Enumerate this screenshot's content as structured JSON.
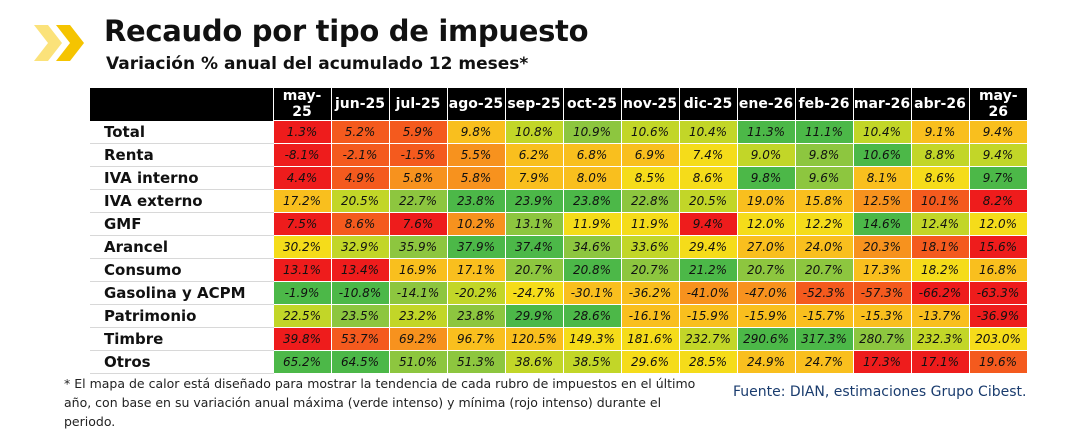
{
  "header": {
    "title": "Recaudo por tipo de impuesto",
    "subtitle": "Variación % anual del acumulado 12 meses*"
  },
  "colors": {
    "logo_chevron": "#f5c400",
    "logo_chevron_light": "#fbe27a",
    "header_bg": "#000000",
    "source_text": "#1a3c6e",
    "scale": {
      "red": "#ee1c1c",
      "orange_red": "#f45a1e",
      "orange": "#f7921e",
      "amber": "#f9bf1e",
      "yellow": "#f5dc1a",
      "yellow_green": "#c2d628",
      "light_green": "#8dc63f",
      "green": "#4cb848"
    }
  },
  "chart_data": {
    "type": "heatmap",
    "title": "Recaudo por tipo de impuesto",
    "subtitle": "Variación % anual del acumulado 12 meses*",
    "columns": [
      "may-25",
      "jun-25",
      "jul-25",
      "ago-25",
      "sep-25",
      "oct-25",
      "nov-25",
      "dic-25",
      "ene-26",
      "feb-26",
      "mar-26",
      "abr-26",
      "may-26"
    ],
    "rows": [
      {
        "label": "Total",
        "values": [
          "1.3%",
          "5.2%",
          "5.9%",
          "9.8%",
          "10.8%",
          "10.9%",
          "10.6%",
          "10.4%",
          "11.3%",
          "11.1%",
          "10.4%",
          "9.1%",
          "9.4%"
        ],
        "colors": [
          "red",
          "orange_red",
          "orange_red",
          "amber",
          "yellow_green",
          "light_green",
          "yellow_green",
          "yellow_green",
          "green",
          "green",
          "yellow_green",
          "amber",
          "amber"
        ]
      },
      {
        "label": "Renta",
        "values": [
          "-8.1%",
          "-2.1%",
          "-1.5%",
          "5.5%",
          "6.2%",
          "6.8%",
          "6.9%",
          "7.4%",
          "9.0%",
          "9.8%",
          "10.6%",
          "8.8%",
          "9.4%"
        ],
        "colors": [
          "red",
          "orange_red",
          "orange_red",
          "orange",
          "amber",
          "amber",
          "amber",
          "yellow",
          "yellow_green",
          "light_green",
          "green",
          "yellow_green",
          "yellow_green"
        ]
      },
      {
        "label": "IVA interno",
        "values": [
          "4.4%",
          "4.9%",
          "5.8%",
          "5.8%",
          "7.9%",
          "8.0%",
          "8.5%",
          "8.6%",
          "9.8%",
          "9.6%",
          "8.1%",
          "8.6%",
          "9.7%"
        ],
        "colors": [
          "red",
          "orange_red",
          "orange",
          "orange",
          "amber",
          "amber",
          "yellow",
          "yellow",
          "green",
          "light_green",
          "amber",
          "yellow",
          "green"
        ]
      },
      {
        "label": "IVA externo",
        "values": [
          "17.2%",
          "20.5%",
          "22.7%",
          "23.8%",
          "23.9%",
          "23.8%",
          "22.8%",
          "20.5%",
          "19.0%",
          "15.8%",
          "12.5%",
          "10.1%",
          "8.2%"
        ],
        "colors": [
          "amber",
          "yellow_green",
          "light_green",
          "green",
          "green",
          "green",
          "light_green",
          "yellow_green",
          "amber",
          "amber",
          "orange",
          "orange_red",
          "red"
        ]
      },
      {
        "label": "GMF",
        "values": [
          "7.5%",
          "8.6%",
          "7.6%",
          "10.2%",
          "13.1%",
          "11.9%",
          "11.9%",
          "9.4%",
          "12.0%",
          "12.2%",
          "14.6%",
          "12.4%",
          "12.0%"
        ],
        "colors": [
          "red",
          "orange_red",
          "red",
          "orange",
          "light_green",
          "yellow",
          "yellow",
          "red",
          "yellow",
          "yellow",
          "green",
          "yellow_green",
          "yellow"
        ]
      },
      {
        "label": "Arancel",
        "values": [
          "30.2%",
          "32.9%",
          "35.9%",
          "37.9%",
          "37.4%",
          "34.6%",
          "33.6%",
          "29.4%",
          "27.0%",
          "24.0%",
          "20.3%",
          "18.1%",
          "15.6%"
        ],
        "colors": [
          "yellow",
          "yellow_green",
          "light_green",
          "green",
          "green",
          "light_green",
          "yellow_green",
          "yellow",
          "amber",
          "amber",
          "orange",
          "orange_red",
          "red"
        ]
      },
      {
        "label": "Consumo",
        "values": [
          "13.1%",
          "13.4%",
          "16.9%",
          "17.1%",
          "20.7%",
          "20.8%",
          "20.7%",
          "21.2%",
          "20.7%",
          "20.7%",
          "17.3%",
          "18.2%",
          "16.8%"
        ],
        "colors": [
          "red",
          "red",
          "amber",
          "amber",
          "light_green",
          "green",
          "light_green",
          "green",
          "light_green",
          "light_green",
          "amber",
          "yellow",
          "amber"
        ]
      },
      {
        "label": "Gasolina y ACPM",
        "values": [
          "-1.9%",
          "-10.8%",
          "-14.1%",
          "-20.2%",
          "-24.7%",
          "-30.1%",
          "-36.2%",
          "-41.0%",
          "-47.0%",
          "-52.3%",
          "-57.3%",
          "-66.2%",
          "-63.3%"
        ],
        "colors": [
          "green",
          "green",
          "light_green",
          "yellow_green",
          "yellow",
          "amber",
          "amber",
          "orange",
          "orange",
          "orange_red",
          "orange_red",
          "red",
          "red"
        ]
      },
      {
        "label": "Patrimonio",
        "values": [
          "22.5%",
          "23.5%",
          "23.2%",
          "23.8%",
          "29.9%",
          "28.6%",
          "-16.1%",
          "-15.9%",
          "-15.9%",
          "-15.7%",
          "-15.3%",
          "-13.7%",
          "-36.9%"
        ],
        "colors": [
          "yellow_green",
          "light_green",
          "yellow_green",
          "light_green",
          "green",
          "green",
          "amber",
          "amber",
          "amber",
          "amber",
          "amber",
          "amber",
          "red"
        ]
      },
      {
        "label": "Timbre",
        "values": [
          "39.8%",
          "53.7%",
          "69.2%",
          "96.7%",
          "120.5%",
          "149.3%",
          "181.6%",
          "232.7%",
          "290.6%",
          "317.3%",
          "280.7%",
          "232.3%",
          "203.0%"
        ],
        "colors": [
          "red",
          "orange_red",
          "orange",
          "amber",
          "amber",
          "yellow",
          "yellow",
          "yellow_green",
          "green",
          "green",
          "light_green",
          "yellow_green",
          "yellow"
        ]
      },
      {
        "label": "Otros",
        "values": [
          "65.2%",
          "64.5%",
          "51.0%",
          "51.3%",
          "38.6%",
          "38.5%",
          "29.6%",
          "28.5%",
          "24.9%",
          "24.7%",
          "17.3%",
          "17.1%",
          "19.6%"
        ],
        "colors": [
          "green",
          "green",
          "light_green",
          "light_green",
          "yellow_green",
          "yellow_green",
          "yellow",
          "yellow",
          "amber",
          "amber",
          "red",
          "red",
          "orange_red"
        ]
      }
    ],
    "legend": "none"
  },
  "footnote": "* El mapa de calor está diseñado para mostrar la tendencia de cada rubro de impuestos en el último año, con base en su variación anual máxima (verde intenso) y mínima (rojo intenso) durante el periodo.",
  "source": "Fuente: DIAN, estimaciones Grupo Cibest."
}
